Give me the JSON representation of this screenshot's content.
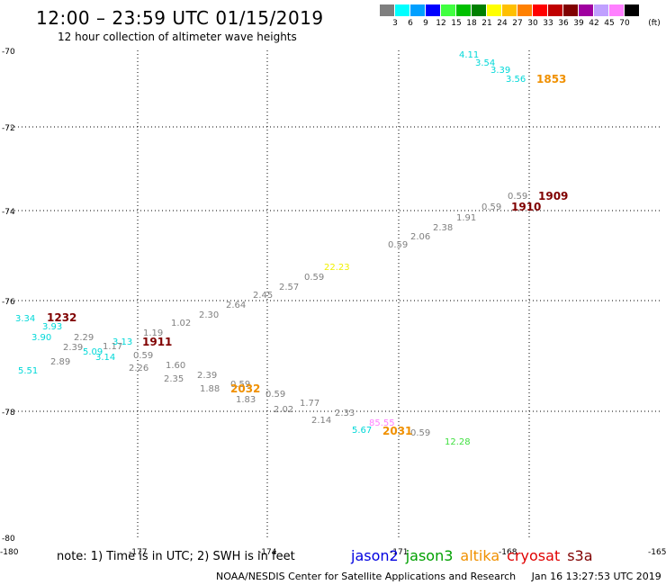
{
  "header": {
    "title": "12:00 – 23:59 UTC 01/15/2019",
    "subtitle": "12 hour collection of altimeter wave heights"
  },
  "legend": {
    "unit": "(ft)",
    "bins": [
      {
        "label": "3",
        "color": "#7f7f7f"
      },
      {
        "label": "6",
        "color": "#00ffff"
      },
      {
        "label": "9",
        "color": "#00a0ff"
      },
      {
        "label": "12",
        "color": "#0000ff"
      },
      {
        "label": "15",
        "color": "#40ff40"
      },
      {
        "label": "18",
        "color": "#00c000"
      },
      {
        "label": "21",
        "color": "#008000"
      },
      {
        "label": "24",
        "color": "#ffff00"
      },
      {
        "label": "27",
        "color": "#ffc000"
      },
      {
        "label": "30",
        "color": "#ff8000"
      },
      {
        "label": "33",
        "color": "#ff0000"
      },
      {
        "label": "36",
        "color": "#c00000"
      },
      {
        "label": "39",
        "color": "#800000"
      },
      {
        "label": "42",
        "color": "#a000a0"
      },
      {
        "label": "45",
        "color": "#c0a0ff"
      },
      {
        "label": "70",
        "color": "#ff80ff"
      },
      {
        "label": "",
        "color": "#000000"
      }
    ]
  },
  "map": {
    "lat_labels": [
      "-70",
      "-72",
      "-74",
      "-76",
      "-78",
      "-80"
    ],
    "lon_labels": [
      "-180",
      "-177",
      "-174",
      "-171",
      "-168",
      "-165"
    ],
    "observations": [
      {
        "text": "4.11",
        "color": "#00d8d8"
      },
      {
        "text": "3.54",
        "color": "#00d8d8"
      },
      {
        "text": "3.39",
        "color": "#00d8d8"
      },
      {
        "text": "3.56",
        "color": "#00d8d8"
      },
      {
        "text": "0.59",
        "color": "#808080"
      },
      {
        "text": "0.59",
        "color": "#808080"
      },
      {
        "text": "1.91",
        "color": "#808080"
      },
      {
        "text": "2.38",
        "color": "#808080"
      },
      {
        "text": "2.06",
        "color": "#808080"
      },
      {
        "text": "0.59",
        "color": "#808080"
      },
      {
        "text": "22.23",
        "color": "#f0f000"
      },
      {
        "text": "0.59",
        "color": "#808080"
      },
      {
        "text": "2.57",
        "color": "#808080"
      },
      {
        "text": "2.45",
        "color": "#808080"
      },
      {
        "text": "2.64",
        "color": "#808080"
      },
      {
        "text": "2.30",
        "color": "#808080"
      },
      {
        "text": "1.02",
        "color": "#808080"
      },
      {
        "text": "1.19",
        "color": "#808080"
      },
      {
        "text": "3.34",
        "color": "#00d8d8"
      },
      {
        "text": "3.93",
        "color": "#00d8d8"
      },
      {
        "text": "3.90",
        "color": "#00d8d8"
      },
      {
        "text": "2.29",
        "color": "#808080"
      },
      {
        "text": "2.39",
        "color": "#808080"
      },
      {
        "text": "1.17",
        "color": "#808080"
      },
      {
        "text": "3.13",
        "color": "#00d8d8"
      },
      {
        "text": "5.09",
        "color": "#00d8d8"
      },
      {
        "text": "3.14",
        "color": "#00d8d8"
      },
      {
        "text": "0.59",
        "color": "#808080"
      },
      {
        "text": "2.89",
        "color": "#808080"
      },
      {
        "text": "5.51",
        "color": "#00d8d8"
      },
      {
        "text": "2.26",
        "color": "#808080"
      },
      {
        "text": "1.60",
        "color": "#808080"
      },
      {
        "text": "2.35",
        "color": "#808080"
      },
      {
        "text": "2.39",
        "color": "#808080"
      },
      {
        "text": "1.88",
        "color": "#808080"
      },
      {
        "text": "0.59",
        "color": "#808080"
      },
      {
        "text": "1.83",
        "color": "#808080"
      },
      {
        "text": "0.59",
        "color": "#808080"
      },
      {
        "text": "2.02",
        "color": "#808080"
      },
      {
        "text": "1.77",
        "color": "#808080"
      },
      {
        "text": "2.14",
        "color": "#808080"
      },
      {
        "text": "2.33",
        "color": "#808080"
      },
      {
        "text": "85.55",
        "color": "#ff80ff"
      },
      {
        "text": "5.67",
        "color": "#00d8d8"
      },
      {
        "text": "0.59",
        "color": "#808080"
      },
      {
        "text": "12.28",
        "color": "#40e040"
      }
    ],
    "time_labels": [
      {
        "text": "1853",
        "color": "#f09000"
      },
      {
        "text": "1909",
        "color": "#800000"
      },
      {
        "text": "1910",
        "color": "#800000"
      },
      {
        "text": "1232",
        "color": "#800000"
      },
      {
        "text": "1911",
        "color": "#800000"
      },
      {
        "text": "2032",
        "color": "#f09000"
      },
      {
        "text": "2031",
        "color": "#f09000"
      }
    ]
  },
  "note": "note:  1) Time is in UTC;  2) SWH is in feet",
  "satellites": [
    {
      "name": "jason2",
      "color": "#0000e0"
    },
    {
      "name": "jason3",
      "color": "#00a000"
    },
    {
      "name": "altika",
      "color": "#f09000"
    },
    {
      "name": "cryosat",
      "color": "#e00000"
    },
    {
      "name": "s3a",
      "color": "#800000"
    }
  ],
  "footer": {
    "credit": "NOAA/NESDIS Center for Satellite Applications and Research",
    "timestamp": "Jan 16 13:27:53 UTC 2019"
  }
}
